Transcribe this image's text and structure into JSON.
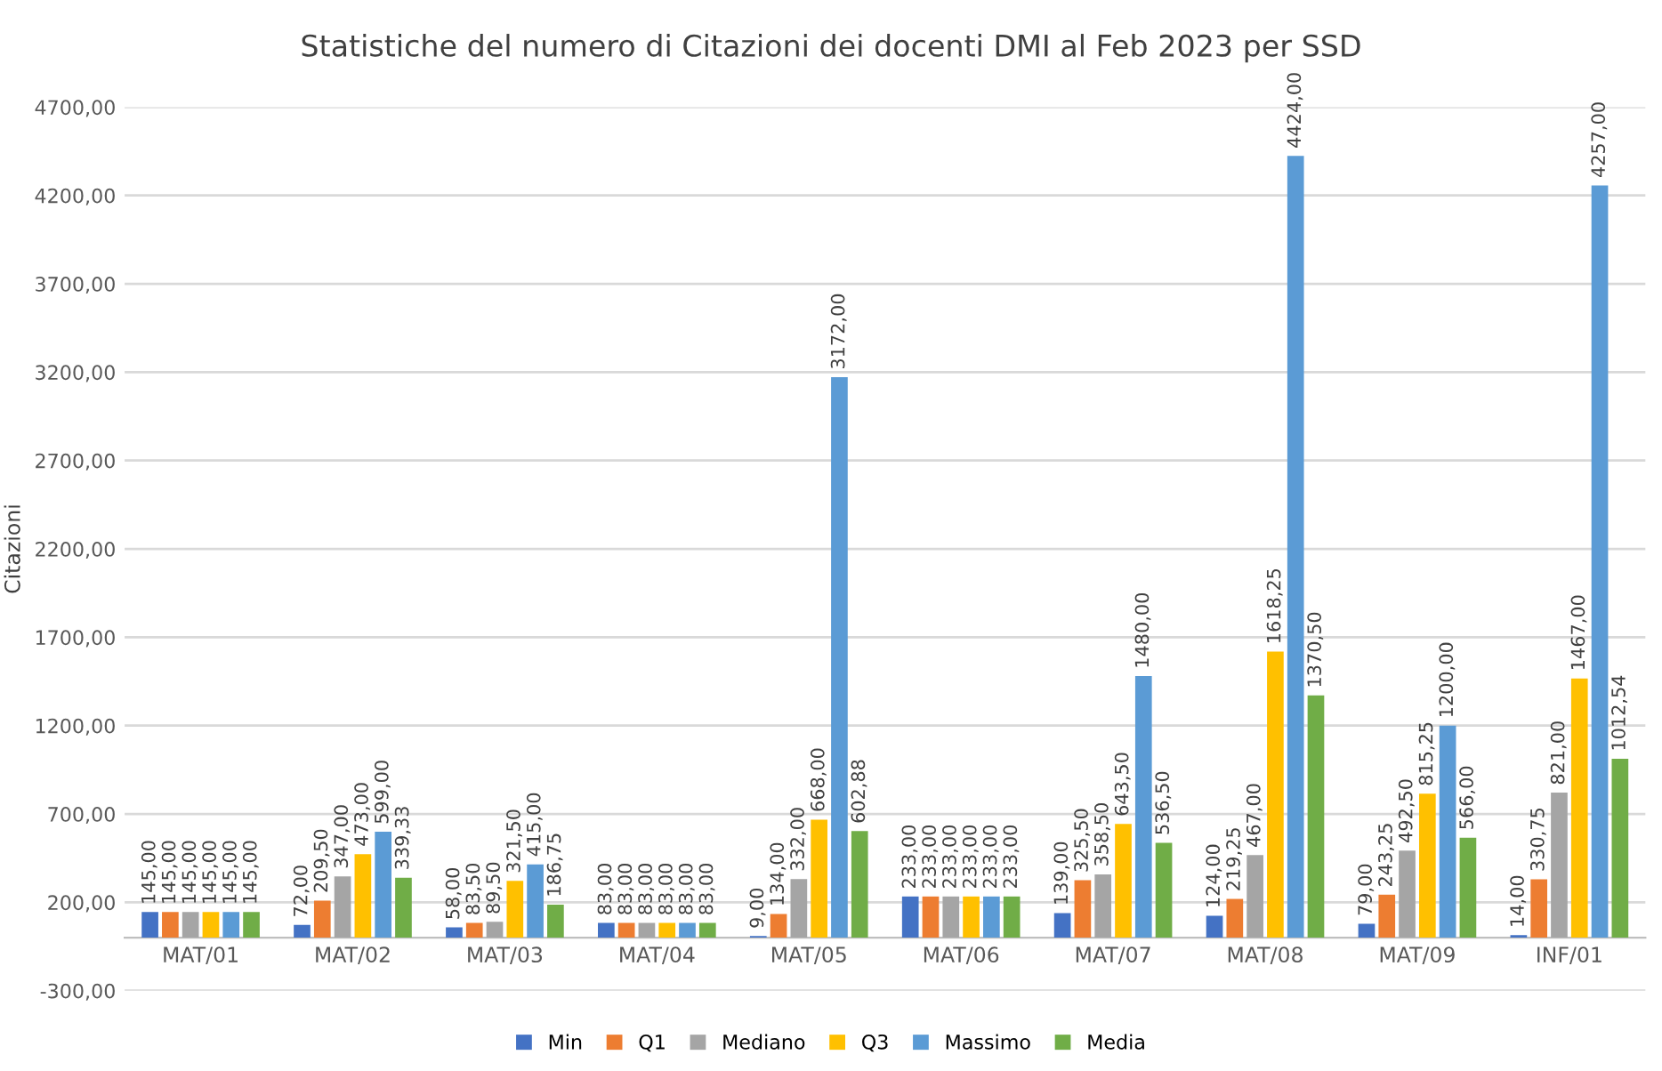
{
  "chart_data": {
    "type": "bar",
    "title": "Statistiche del numero di Citazioni dei docenti DMI al Feb 2023 per SSD",
    "ylabel": "Citazioni",
    "categories": [
      "MAT/01",
      "MAT/02",
      "MAT/03",
      "MAT/04",
      "MAT/05",
      "MAT/06",
      "MAT/07",
      "MAT/08",
      "MAT/09",
      "INF/01"
    ],
    "series": [
      {
        "name": "Min",
        "color": "#4472c4",
        "values": [
          145,
          72,
          58,
          83,
          9,
          233,
          139,
          124,
          79,
          14
        ],
        "value_labels": [
          "145,00",
          "72,00",
          "58,00",
          "83,00",
          "9,00",
          "233,00",
          "139,00",
          "124,00",
          "79,00",
          "14,00"
        ]
      },
      {
        "name": "Q1",
        "color": "#ed7d31",
        "values": [
          145,
          209.5,
          83.5,
          83,
          134,
          233,
          325.5,
          219.25,
          243.25,
          330.75
        ],
        "value_labels": [
          "145,00",
          "209,50",
          "83,50",
          "83,00",
          "134,00",
          "233,00",
          "325,50",
          "219,25",
          "243,25",
          "330,75"
        ]
      },
      {
        "name": "Mediano",
        "color": "#a5a5a5",
        "values": [
          145,
          347,
          89.5,
          83,
          332,
          233,
          358.5,
          467,
          492.5,
          821
        ],
        "value_labels": [
          "145,00",
          "347,00",
          "89,50",
          "83,00",
          "332,00",
          "233,00",
          "358,50",
          "467,00",
          "492,50",
          "821,00"
        ]
      },
      {
        "name": "Q3",
        "color": "#ffc000",
        "values": [
          145,
          473,
          321.5,
          83,
          668,
          233,
          643.5,
          1618.25,
          815.25,
          1467
        ],
        "value_labels": [
          "145,00",
          "473,00",
          "321,50",
          "83,00",
          "668,00",
          "233,00",
          "643,50",
          "1618,25",
          "815,25",
          "1467,00"
        ]
      },
      {
        "name": "Massimo",
        "color": "#5b9bd5",
        "values": [
          145,
          599,
          415,
          83,
          3172,
          233,
          1480,
          4424,
          1200,
          4257
        ],
        "value_labels": [
          "145,00",
          "599,00",
          "415,00",
          "83,00",
          "3172,00",
          "233,00",
          "1480,00",
          "4424,00",
          "1200,00",
          "4257,00"
        ]
      },
      {
        "name": "Media",
        "color": "#70ad47",
        "values": [
          145,
          339.33,
          186.75,
          83,
          602.88,
          233,
          536.5,
          1370.5,
          566,
          1012.54
        ],
        "value_labels": [
          "145,00",
          "339,33",
          "186,75",
          "83,00",
          "602,88",
          "233,00",
          "536,50",
          "1370,50",
          "566,00",
          "1012,54"
        ]
      }
    ],
    "ylim": [
      -300,
      4700
    ],
    "yticks": [
      {
        "value": -300,
        "label": "-300,00"
      },
      {
        "value": 200,
        "label": "200,00"
      },
      {
        "value": 700,
        "label": "700,00"
      },
      {
        "value": 1200,
        "label": "1200,00"
      },
      {
        "value": 1700,
        "label": "1700,00"
      },
      {
        "value": 2200,
        "label": "2200,00"
      },
      {
        "value": 2700,
        "label": "2700,00"
      },
      {
        "value": 3200,
        "label": "3200,00"
      },
      {
        "value": 3700,
        "label": "3700,00"
      },
      {
        "value": 4200,
        "label": "4200,00"
      },
      {
        "value": 4700,
        "label": "4700,00"
      }
    ],
    "grid": "y",
    "legend": "bottom"
  }
}
